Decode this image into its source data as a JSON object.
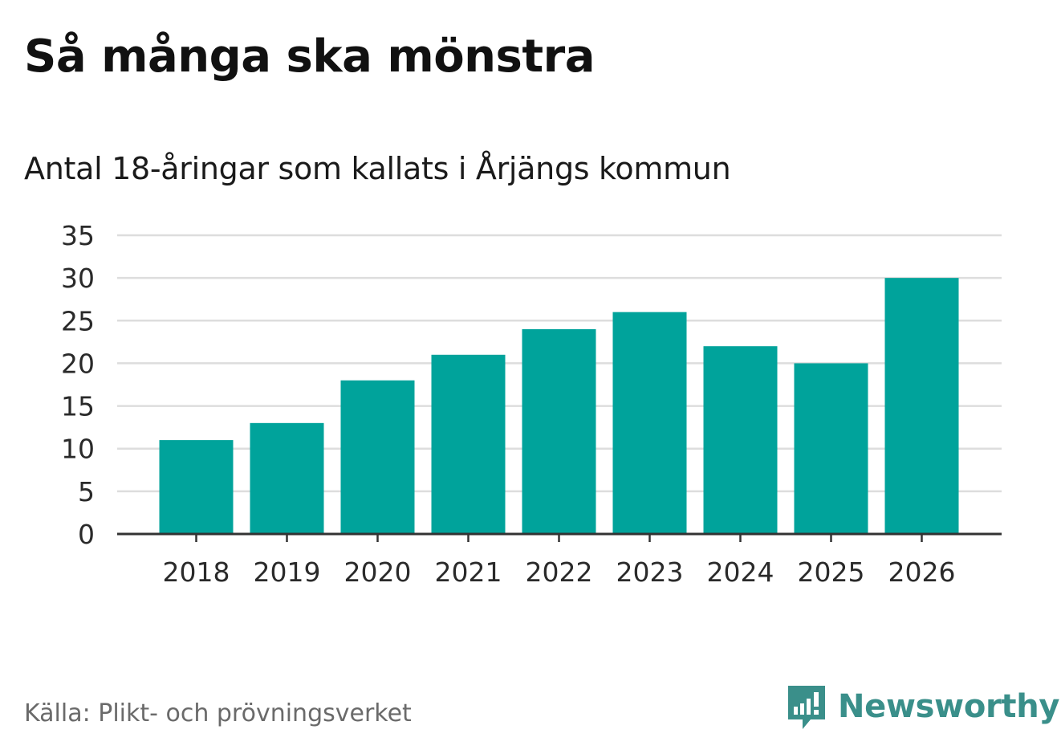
{
  "header": {
    "title": "Så många ska mönstra",
    "subtitle": "Antal 18-åringar som kallats i Årjängs kommun"
  },
  "footer": {
    "source": "Källa: Plikt- och prövningsverket",
    "brand": "Newsworthy"
  },
  "colors": {
    "bar": "#00a39b",
    "grid": "#dddddd",
    "axis": "#333333",
    "brand": "#3a8f8a"
  },
  "chart_data": {
    "type": "bar",
    "categories": [
      "2018",
      "2019",
      "2020",
      "2021",
      "2022",
      "2023",
      "2024",
      "2025",
      "2026"
    ],
    "values": [
      11,
      13,
      18,
      21,
      24,
      26,
      22,
      20,
      30
    ],
    "title": "Så många ska mönstra",
    "subtitle": "Antal 18-åringar som kallats i Årjängs kommun",
    "xlabel": "",
    "ylabel": "",
    "ylim": [
      0,
      35
    ],
    "yticks": [
      0,
      5,
      10,
      15,
      20,
      25,
      30,
      35
    ],
    "grid": true,
    "legend": "none"
  }
}
